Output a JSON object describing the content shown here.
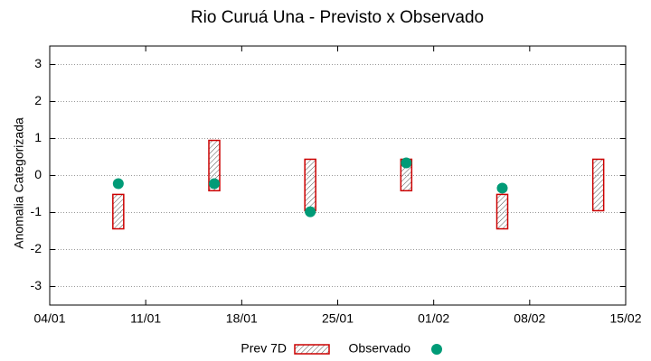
{
  "chart_data": {
    "type": "floating-box-scatter",
    "title": "Rio Curuá Una - Previsto x Observado",
    "y_label": "Anomalia Categorizada",
    "x": [
      "09/01",
      "16/01",
      "23/01",
      "30/01",
      "06/02",
      "13/02"
    ],
    "xlim": [
      "04/01",
      "15/02"
    ],
    "xticks": [
      "04/01",
      "11/01",
      "18/01",
      "25/01",
      "01/02",
      "08/02",
      "15/02"
    ],
    "ylim": [
      -3.5,
      3.5
    ],
    "yticks": [
      -3,
      -2,
      -1,
      0,
      1,
      2,
      3
    ],
    "grid": true,
    "legend": "bottom",
    "series": [
      {
        "name": "Prev 7D",
        "color": "#cc0000",
        "low": [
          -1.44,
          -0.41,
          -0.95,
          -0.41,
          -1.44,
          -0.95
        ],
        "high": [
          -0.51,
          0.95,
          0.44,
          0.44,
          -0.51,
          0.44
        ]
      },
      {
        "name": "Observado",
        "color": "#009b77",
        "values": [
          -0.22,
          -0.22,
          -0.98,
          0.34,
          -0.34,
          null
        ]
      }
    ]
  }
}
